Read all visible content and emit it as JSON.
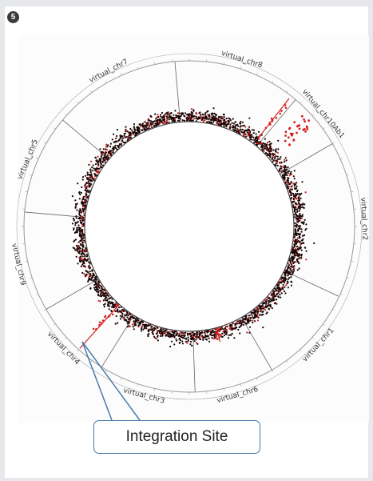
{
  "panel_number": "5",
  "chromosomes": [
    {
      "label": "virtual_chr8",
      "start": -5,
      "end": 40
    },
    {
      "label": "virtual_chr10Ab1",
      "start": 40,
      "end": 60
    },
    {
      "label": "virtual_chr2",
      "start": 60,
      "end": 115
    },
    {
      "label": "virtual_chr1",
      "start": 115,
      "end": 150
    },
    {
      "label": "virtual_chr6",
      "start": 150,
      "end": 178
    },
    {
      "label": "virtual_chr3",
      "start": 178,
      "end": 212
    },
    {
      "label": "virtual_chr4",
      "start": 212,
      "end": 240
    },
    {
      "label": "virtual_chr9",
      "start": 240,
      "end": 275
    },
    {
      "label": "virtual_chr5",
      "start": 275,
      "end": 310
    },
    {
      "label": "virtual_chr7",
      "start": 310,
      "end": 355
    }
  ],
  "highlight_color": "#d62020",
  "point_color": "#1a0505",
  "callout": {
    "text": "Integration Site"
  }
}
